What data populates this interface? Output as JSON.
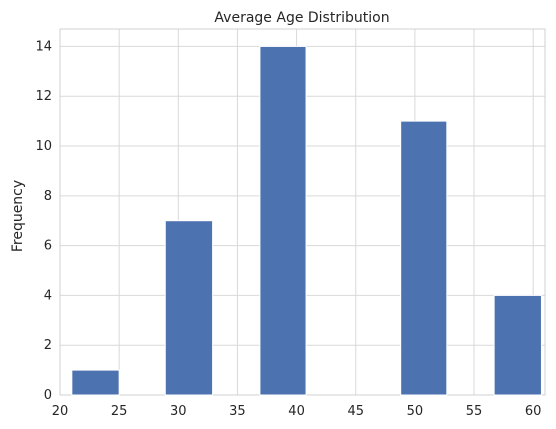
{
  "chart_data": {
    "type": "bar",
    "title": "Average Age Distribution",
    "xlabel": "",
    "ylabel": "Frequency",
    "xlim": [
      20,
      61
    ],
    "ylim": [
      0,
      14.7
    ],
    "x_ticks": [
      20,
      25,
      30,
      35,
      40,
      45,
      50,
      55,
      60
    ],
    "y_ticks": [
      0,
      2,
      4,
      6,
      8,
      10,
      12,
      14
    ],
    "grid": true,
    "bar_color": "#4c72b0",
    "bins": [
      {
        "x0": 21.0,
        "x1": 25.0,
        "value": 1
      },
      {
        "x0": 25.0,
        "x1": 28.9,
        "value": 0
      },
      {
        "x0": 28.9,
        "x1": 32.9,
        "value": 7
      },
      {
        "x0": 32.9,
        "x1": 36.9,
        "value": 0
      },
      {
        "x0": 36.9,
        "x1": 40.8,
        "value": 14
      },
      {
        "x0": 40.8,
        "x1": 44.8,
        "value": 0
      },
      {
        "x0": 44.8,
        "x1": 48.8,
        "value": 0
      },
      {
        "x0": 48.8,
        "x1": 52.7,
        "value": 11
      },
      {
        "x0": 52.7,
        "x1": 56.7,
        "value": 0
      },
      {
        "x0": 56.7,
        "x1": 60.7,
        "value": 4
      }
    ]
  }
}
